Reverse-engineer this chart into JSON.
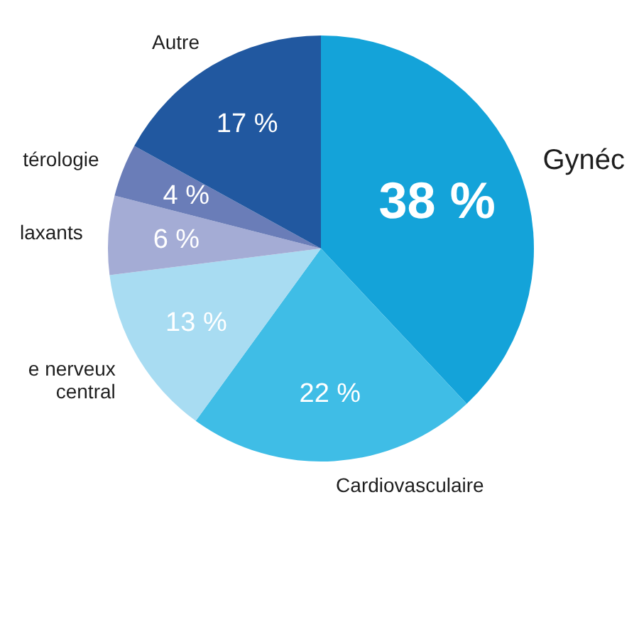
{
  "chart_data": {
    "type": "pie",
    "categories": [
      "Gynéc",
      "Cardiovasculaire",
      "e nerveux central",
      "laxants",
      "térologie",
      "Autre"
    ],
    "values": [
      38,
      22,
      13,
      6,
      4,
      17
    ],
    "colors": [
      "#14a3d9",
      "#3fbde6",
      "#a8dcf2",
      "#a4acd5",
      "#6a7db8",
      "#2158a0"
    ],
    "value_labels": [
      "38 %",
      "22 %",
      "13 %",
      "6 %",
      "4 %",
      "17 %"
    ]
  }
}
